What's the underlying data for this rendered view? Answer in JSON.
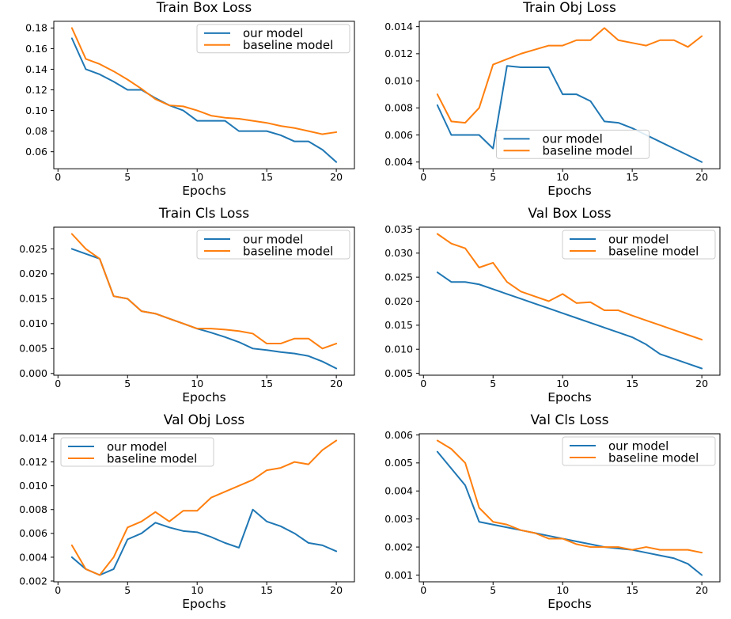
{
  "figure": {
    "background": "#ffffff",
    "xlabel": "Epochs",
    "legend_labels": [
      "our model",
      "baseline model"
    ],
    "colors": {
      "our_model": "#1f77b4",
      "baseline_model": "#ff7f0e",
      "text": "#000000",
      "spine": "#000000",
      "legend_border": "#cccccc",
      "legend_fill": "#ffffff"
    }
  },
  "epochs": [
    1,
    2,
    3,
    4,
    5,
    6,
    7,
    8,
    9,
    10,
    11,
    12,
    13,
    14,
    15,
    16,
    17,
    18,
    19,
    20
  ],
  "chart_data": [
    {
      "type": "line",
      "title": "Train Box Loss",
      "xlabel": "Epochs",
      "xlim": [
        -0.3,
        21.3
      ],
      "xticks": [
        0,
        5,
        10,
        15,
        20
      ],
      "ylim": [
        0.0435,
        0.1865
      ],
      "yticks": [
        0.06,
        0.08,
        0.1,
        0.12,
        0.14,
        0.16,
        0.18
      ],
      "ytick_decimals": 2,
      "legend_position": "upper-right",
      "grid": false,
      "series": [
        {
          "name": "our model",
          "color": "#1f77b4",
          "values": [
            0.17,
            0.14,
            0.135,
            0.128,
            0.12,
            0.12,
            0.112,
            0.105,
            0.1,
            0.09,
            0.09,
            0.09,
            0.08,
            0.08,
            0.08,
            0.076,
            0.07,
            0.07,
            0.062,
            0.05
          ]
        },
        {
          "name": "baseline model",
          "color": "#ff7f0e",
          "values": [
            0.18,
            0.15,
            0.145,
            0.138,
            0.13,
            0.121,
            0.111,
            0.105,
            0.104,
            0.1,
            0.095,
            0.093,
            0.092,
            0.09,
            0.088,
            0.085,
            0.083,
            0.08,
            0.077,
            0.079
          ]
        }
      ]
    },
    {
      "type": "line",
      "title": "Train Obj Loss",
      "xlabel": "Epochs",
      "xlim": [
        -0.3,
        21.3
      ],
      "xticks": [
        0,
        5,
        10,
        15,
        20
      ],
      "ylim": [
        0.003505,
        0.014395
      ],
      "yticks": [
        0.004,
        0.006,
        0.008,
        0.01,
        0.012,
        0.014
      ],
      "ytick_decimals": 3,
      "legend_position": "lower-center",
      "grid": false,
      "series": [
        {
          "name": "our model",
          "color": "#1f77b4",
          "values": [
            0.0082,
            0.006,
            0.006,
            0.006,
            0.005,
            0.0111,
            0.011,
            0.011,
            0.011,
            0.009,
            0.009,
            0.0085,
            0.007,
            0.0069,
            0.0065,
            0.006,
            0.0055,
            0.005,
            0.0045,
            0.004
          ]
        },
        {
          "name": "baseline model",
          "color": "#ff7f0e",
          "values": [
            0.009,
            0.007,
            0.0069,
            0.008,
            0.0112,
            0.0116,
            0.012,
            0.0123,
            0.0126,
            0.0126,
            0.013,
            0.013,
            0.0139,
            0.013,
            0.0128,
            0.0126,
            0.013,
            0.013,
            0.0125,
            0.0133
          ]
        }
      ]
    },
    {
      "type": "line",
      "title": "Train Cls Loss",
      "xlabel": "Epochs",
      "xlim": [
        -0.3,
        21.3
      ],
      "xticks": [
        0,
        5,
        10,
        15,
        20
      ],
      "ylim": [
        -0.00035,
        0.02935
      ],
      "yticks": [
        0.0,
        0.005,
        0.01,
        0.015,
        0.02,
        0.025
      ],
      "ytick_decimals": 3,
      "legend_position": "upper-right",
      "grid": false,
      "series": [
        {
          "name": "our model",
          "color": "#1f77b4",
          "values": [
            0.025,
            0.024,
            0.023,
            0.0155,
            0.015,
            0.0125,
            0.012,
            0.011,
            0.01,
            0.009,
            0.0082,
            0.0073,
            0.0063,
            0.005,
            0.0047,
            0.0043,
            0.004,
            0.0035,
            0.0024,
            0.001
          ]
        },
        {
          "name": "baseline model",
          "color": "#ff7f0e",
          "values": [
            0.028,
            0.025,
            0.023,
            0.0155,
            0.015,
            0.0125,
            0.012,
            0.011,
            0.01,
            0.009,
            0.009,
            0.0088,
            0.0085,
            0.008,
            0.006,
            0.006,
            0.007,
            0.007,
            0.005,
            0.006
          ]
        }
      ]
    },
    {
      "type": "line",
      "title": "Val Box Loss",
      "xlabel": "Epochs",
      "xlim": [
        -0.3,
        21.3
      ],
      "xticks": [
        0,
        5,
        10,
        15,
        20
      ],
      "ylim": [
        0.0046,
        0.0354
      ],
      "yticks": [
        0.005,
        0.01,
        0.015,
        0.02,
        0.025,
        0.03,
        0.035
      ],
      "ytick_decimals": 3,
      "legend_position": "upper-right",
      "grid": false,
      "series": [
        {
          "name": "our model",
          "color": "#1f77b4",
          "values": [
            0.026,
            0.024,
            0.024,
            0.0235,
            0.0225,
            0.0215,
            0.0205,
            0.0195,
            0.0185,
            0.0175,
            0.0165,
            0.0155,
            0.0145,
            0.0135,
            0.0125,
            0.011,
            0.009,
            0.008,
            0.007,
            0.006
          ]
        },
        {
          "name": "baseline model",
          "color": "#ff7f0e",
          "values": [
            0.034,
            0.032,
            0.031,
            0.027,
            0.028,
            0.024,
            0.022,
            0.021,
            0.02,
            0.0215,
            0.0196,
            0.0198,
            0.0181,
            0.0181,
            0.017,
            0.016,
            0.015,
            0.014,
            0.013,
            0.012
          ]
        }
      ]
    },
    {
      "type": "line",
      "title": "Val Obj Loss",
      "xlabel": "Epochs",
      "xlim": [
        -0.3,
        21.3
      ],
      "xticks": [
        0,
        5,
        10,
        15,
        20
      ],
      "ylim": [
        0.001935,
        0.014365
      ],
      "yticks": [
        0.002,
        0.004,
        0.006,
        0.008,
        0.01,
        0.012,
        0.014
      ],
      "ytick_decimals": 3,
      "legend_position": "upper-left",
      "grid": false,
      "series": [
        {
          "name": "our model",
          "color": "#1f77b4",
          "values": [
            0.004,
            0.003,
            0.0025,
            0.003,
            0.0055,
            0.006,
            0.0069,
            0.0065,
            0.0062,
            0.0061,
            0.0057,
            0.0052,
            0.0048,
            0.008,
            0.007,
            0.0066,
            0.006,
            0.0052,
            0.005,
            0.0045
          ]
        },
        {
          "name": "baseline model",
          "color": "#ff7f0e",
          "values": [
            0.005,
            0.003,
            0.0025,
            0.004,
            0.0065,
            0.007,
            0.0078,
            0.007,
            0.0079,
            0.0079,
            0.009,
            0.0095,
            0.01,
            0.0105,
            0.0113,
            0.0115,
            0.012,
            0.0118,
            0.013,
            0.0138
          ]
        }
      ]
    },
    {
      "type": "line",
      "title": "Val Cls Loss",
      "xlabel": "Epochs",
      "xlim": [
        -0.3,
        21.3
      ],
      "xticks": [
        0,
        5,
        10,
        15,
        20
      ],
      "ylim": [
        0.00076,
        0.00604
      ],
      "yticks": [
        0.001,
        0.002,
        0.003,
        0.004,
        0.005,
        0.006
      ],
      "ytick_decimals": 3,
      "legend_position": "upper-right",
      "grid": false,
      "series": [
        {
          "name": "our model",
          "color": "#1f77b4",
          "values": [
            0.0054,
            0.0048,
            0.0042,
            0.0029,
            0.0028,
            0.0027,
            0.0026,
            0.0025,
            0.0024,
            0.0023,
            0.0022,
            0.0021,
            0.002,
            0.00195,
            0.0019,
            0.0018,
            0.0017,
            0.0016,
            0.0014,
            0.001
          ]
        },
        {
          "name": "baseline model",
          "color": "#ff7f0e",
          "values": [
            0.0058,
            0.0055,
            0.005,
            0.0034,
            0.0029,
            0.0028,
            0.0026,
            0.0025,
            0.0023,
            0.0023,
            0.0021,
            0.002,
            0.002,
            0.002,
            0.0019,
            0.002,
            0.0019,
            0.0019,
            0.0019,
            0.0018
          ]
        }
      ]
    }
  ]
}
